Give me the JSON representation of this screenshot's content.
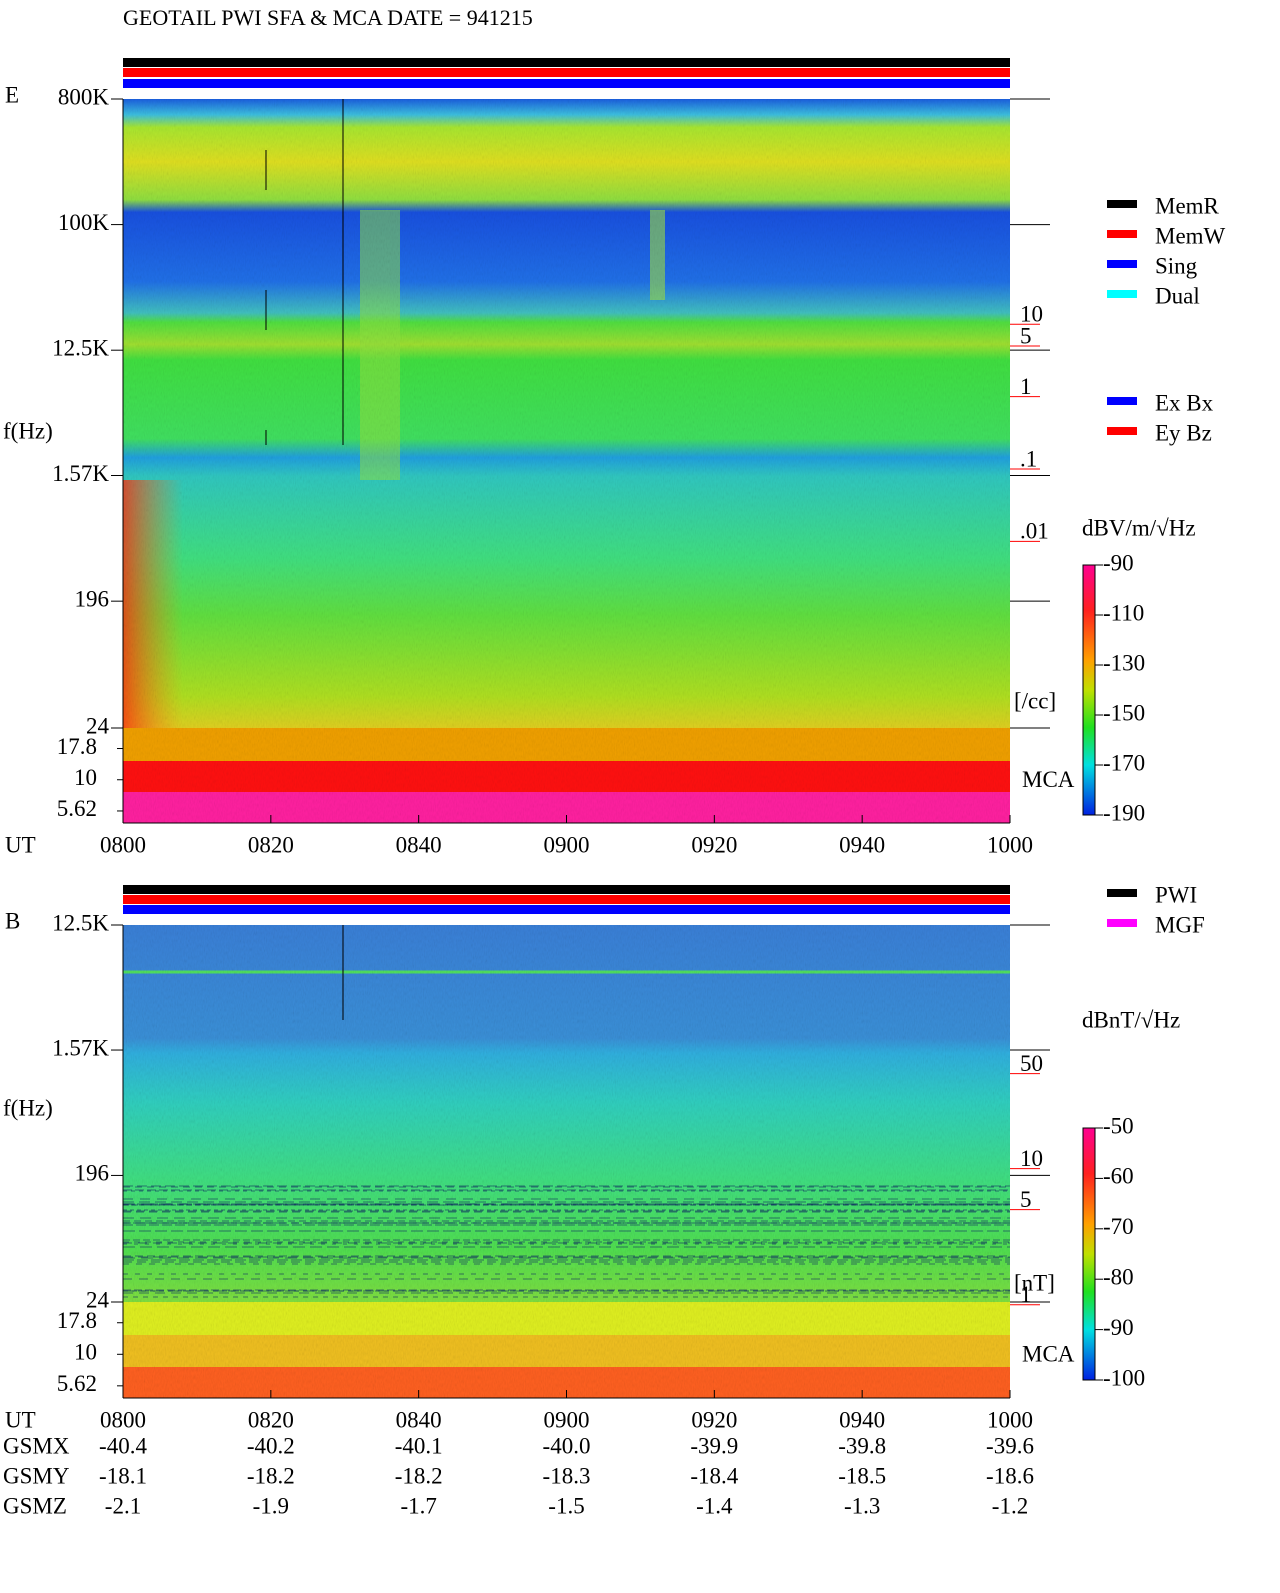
{
  "header": {
    "title": "GEOTAIL   PWI SFA & MCA   DATE = 941215"
  },
  "chart_data": [
    {
      "type": "spectrogram",
      "panel_label": "E",
      "ylabel": "f(Hz)",
      "xlabel": "UT",
      "log_y": true,
      "ylim": [
        24,
        800000
      ],
      "yticks": [
        {
          "value": 800000,
          "label": "800K"
        },
        {
          "value": 100000,
          "label": "100K"
        },
        {
          "value": 12500,
          "label": "12.5K"
        },
        {
          "value": 1570,
          "label": "1.57K"
        },
        196,
        24
      ],
      "mca_label": "MCA",
      "mca_ylim": [
        4.5,
        26
      ],
      "mca_yticks": [
        17.8,
        10,
        5.62
      ],
      "xlim": [
        0,
        120
      ],
      "xticks": [
        {
          "value": 0,
          "label": "0800"
        },
        {
          "value": 20,
          "label": "0820"
        },
        {
          "value": 40,
          "label": "0840"
        },
        {
          "value": 60,
          "label": "0900"
        },
        {
          "value": 80,
          "label": "0920"
        },
        {
          "value": 100,
          "label": "0940"
        },
        {
          "value": 120,
          "label": "1000"
        }
      ],
      "right_axis_lim": [
        1e-06,
        10000
      ],
      "right_axis_ticks": [
        10,
        5,
        1,
        {
          "value": 0.1,
          "label": ".1"
        },
        {
          "value": 0.01,
          "label": ".01"
        }
      ],
      "right_axis_unit": "[/cc]",
      "right_axis_color": "#ff0000",
      "colorbar_label": "dBV/m/√Hz",
      "clim": [
        -190,
        -90
      ],
      "cticks": [
        -90,
        -110,
        -130,
        -150,
        -170,
        -190
      ],
      "legend": [
        {
          "name": "MemR",
          "color": "#000000"
        },
        {
          "name": "MemW",
          "color": "#ff0000"
        },
        {
          "name": "Sing",
          "color": "#0000ff"
        },
        {
          "name": "Dual",
          "color": "#00ffff"
        }
      ],
      "channel_legend": [
        {
          "name": "Ex Bx",
          "color": "#0000ff"
        },
        {
          "name": "Ey Bz",
          "color": "#ff0000"
        }
      ]
    },
    {
      "type": "spectrogram",
      "panel_label": "B",
      "ylabel": "f(Hz)",
      "xlabel": "UT",
      "log_y": true,
      "ylim": [
        24,
        12500
      ],
      "yticks": [
        {
          "value": 12500,
          "label": "12.5K"
        },
        {
          "value": 1570,
          "label": "1.57K"
        },
        196,
        24
      ],
      "mca_label": "MCA",
      "mca_ylim": [
        4.5,
        26
      ],
      "mca_yticks": [
        17.8,
        10,
        5.62
      ],
      "xlim": [
        0,
        120
      ],
      "xticks": [
        {
          "value": 0,
          "label": "0800"
        },
        {
          "value": 20,
          "label": "0820"
        },
        {
          "value": 40,
          "label": "0840"
        },
        {
          "value": 60,
          "label": "0900"
        },
        {
          "value": 80,
          "label": "0920"
        },
        {
          "value": 100,
          "label": "0940"
        },
        {
          "value": 120,
          "label": "1000"
        }
      ],
      "right_axis_lim": [
        0.18,
        540
      ],
      "right_axis_ticks": [
        50,
        10,
        5,
        1
      ],
      "right_axis_unit": "[nT]",
      "right_axis_color": "#ff0000",
      "colorbar_label": "dBnT/√Hz",
      "clim": [
        -100,
        -50
      ],
      "cticks": [
        -50,
        -60,
        -70,
        -80,
        -90,
        -100
      ],
      "legend": [
        {
          "name": "PWI",
          "color": "#000000"
        },
        {
          "name": "MGF",
          "color": "#ff00ff"
        }
      ]
    }
  ],
  "orbit": {
    "rows": [
      {
        "label": "GSMX",
        "values": [
          "-40.4",
          "-40.2",
          "-40.1",
          "-40.0",
          "-39.9",
          "-39.8",
          "-39.6"
        ]
      },
      {
        "label": "GSMY",
        "values": [
          "-18.1",
          "-18.2",
          "-18.2",
          "-18.3",
          "-18.4",
          "-18.5",
          "-18.6"
        ]
      },
      {
        "label": "GSMZ",
        "values": [
          "-2.1",
          "-1.9",
          "-1.7",
          "-1.5",
          "-1.4",
          "-1.3",
          "-1.2"
        ]
      }
    ]
  }
}
